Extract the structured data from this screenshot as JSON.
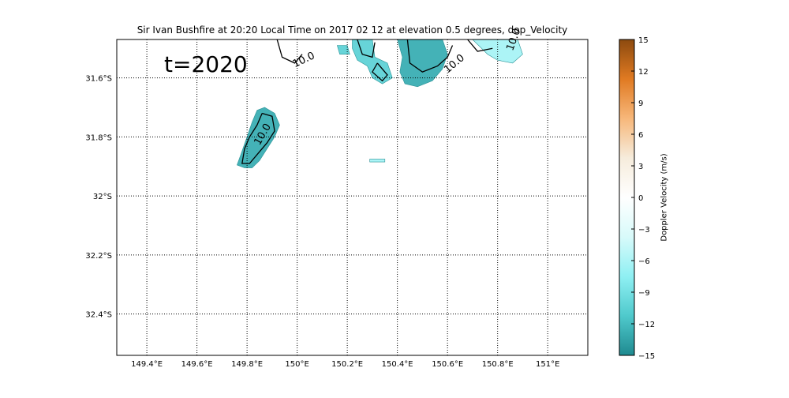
{
  "title": "Sir Ivan Bushfire at 20:20 Local Time on 2017 02 12 at elevation 0.5 degrees, dop_Velocity",
  "annotation": "t=2020",
  "contour_label": "10.0",
  "map": {
    "lon_range": [
      149.28,
      151.16
    ],
    "lat_range": [
      -32.54,
      -31.47
    ],
    "lon_ticks": [
      {
        "value": 149.4,
        "label": "149.4°E"
      },
      {
        "value": 149.6,
        "label": "149.6°E"
      },
      {
        "value": 149.8,
        "label": "149.8°E"
      },
      {
        "value": 150.0,
        "label": "150°E"
      },
      {
        "value": 150.2,
        "label": "150.2°E"
      },
      {
        "value": 150.4,
        "label": "150.4°E"
      },
      {
        "value": 150.6,
        "label": "150.6°E"
      },
      {
        "value": 150.8,
        "label": "150.8°E"
      },
      {
        "value": 151.0,
        "label": "151°E"
      }
    ],
    "lat_ticks": [
      {
        "value": -31.6,
        "label": "31.6°S"
      },
      {
        "value": -31.8,
        "label": "31.8°S"
      },
      {
        "value": -32.0,
        "label": "32°S"
      },
      {
        "value": -32.2,
        "label": "32.2°S"
      },
      {
        "value": -32.4,
        "label": "32.4°S"
      }
    ],
    "grid": "dotted",
    "echo_colors": {
      "strong": "#3aaeb4",
      "medium": "#5fd2d6",
      "light": "#a8f4f6",
      "dark": "#1f8c90"
    },
    "echoes": [
      {
        "name": "fire-plume-echo",
        "color": "strong",
        "poly": [
          [
            149.84,
            -31.71
          ],
          [
            149.87,
            -31.7
          ],
          [
            149.91,
            -31.72
          ],
          [
            149.93,
            -31.76
          ],
          [
            149.91,
            -31.8
          ],
          [
            149.88,
            -31.84
          ],
          [
            149.85,
            -31.88
          ],
          [
            149.82,
            -31.905
          ],
          [
            149.79,
            -31.905
          ],
          [
            149.76,
            -31.895
          ],
          [
            149.775,
            -31.86
          ],
          [
            149.8,
            -31.8
          ],
          [
            149.82,
            -31.75
          ]
        ]
      },
      {
        "name": "north-echo-1",
        "color": "medium",
        "poly": [
          [
            150.22,
            -31.47
          ],
          [
            150.3,
            -31.47
          ],
          [
            150.31,
            -31.53
          ],
          [
            150.36,
            -31.55
          ],
          [
            150.38,
            -31.6
          ],
          [
            150.34,
            -31.62
          ],
          [
            150.3,
            -31.6
          ],
          [
            150.28,
            -31.56
          ],
          [
            150.24,
            -31.54
          ],
          [
            150.22,
            -31.5
          ]
        ]
      },
      {
        "name": "north-echo-2",
        "color": "strong",
        "poly": [
          [
            150.4,
            -31.47
          ],
          [
            150.58,
            -31.47
          ],
          [
            150.6,
            -31.52
          ],
          [
            150.58,
            -31.57
          ],
          [
            150.54,
            -31.61
          ],
          [
            150.48,
            -31.63
          ],
          [
            150.43,
            -31.62
          ],
          [
            150.41,
            -31.58
          ],
          [
            150.42,
            -31.53
          ]
        ]
      },
      {
        "name": "north-echo-3",
        "color": "light",
        "poly": [
          [
            150.7,
            -31.47
          ],
          [
            150.88,
            -31.47
          ],
          [
            150.9,
            -31.52
          ],
          [
            150.86,
            -31.55
          ],
          [
            150.8,
            -31.54
          ],
          [
            150.76,
            -31.52
          ]
        ]
      },
      {
        "name": "north-echo-4",
        "color": "medium",
        "poly": [
          [
            150.16,
            -31.49
          ],
          [
            150.2,
            -31.49
          ],
          [
            150.21,
            -31.52
          ],
          [
            150.17,
            -31.52
          ]
        ]
      },
      {
        "name": "isolated-echo",
        "color": "light",
        "poly": [
          [
            150.29,
            -31.875
          ],
          [
            150.35,
            -31.875
          ],
          [
            150.35,
            -31.885
          ],
          [
            150.29,
            -31.885
          ]
        ]
      }
    ],
    "contours": [
      {
        "name": "contour-fire-plume",
        "pts": [
          [
            149.86,
            -31.72
          ],
          [
            149.9,
            -31.73
          ],
          [
            149.91,
            -31.78
          ],
          [
            149.88,
            -31.82
          ],
          [
            149.84,
            -31.86
          ],
          [
            149.81,
            -31.89
          ],
          [
            149.78,
            -31.89
          ],
          [
            149.79,
            -31.84
          ],
          [
            149.81,
            -31.8
          ],
          [
            149.84,
            -31.76
          ],
          [
            149.86,
            -31.72
          ]
        ]
      },
      {
        "name": "contour-north-1",
        "pts": [
          [
            149.92,
            -31.47
          ],
          [
            149.94,
            -31.53
          ],
          [
            149.99,
            -31.55
          ],
          [
            150.02,
            -31.52
          ]
        ]
      },
      {
        "name": "contour-north-2",
        "pts": [
          [
            150.24,
            -31.47
          ],
          [
            150.26,
            -31.52
          ],
          [
            150.3,
            -31.53
          ],
          [
            150.31,
            -31.48
          ]
        ]
      },
      {
        "name": "contour-north-3",
        "pts": [
          [
            150.32,
            -31.55
          ],
          [
            150.36,
            -31.59
          ],
          [
            150.34,
            -31.61
          ],
          [
            150.3,
            -31.58
          ],
          [
            150.32,
            -31.55
          ]
        ]
      },
      {
        "name": "contour-north-4",
        "pts": [
          [
            150.44,
            -31.47
          ],
          [
            150.45,
            -31.55
          ],
          [
            150.5,
            -31.58
          ],
          [
            150.56,
            -31.56
          ],
          [
            150.6,
            -31.53
          ],
          [
            150.62,
            -31.49
          ]
        ]
      },
      {
        "name": "contour-north-5",
        "pts": [
          [
            150.68,
            -31.47
          ],
          [
            150.72,
            -31.51
          ],
          [
            150.78,
            -31.5
          ]
        ]
      }
    ]
  },
  "colorbar": {
    "label": "Doppler Velocity (m/s)",
    "range": [
      -15,
      15
    ],
    "ticks": [
      {
        "value": 15,
        "label": "15"
      },
      {
        "value": 12,
        "label": "12"
      },
      {
        "value": 9,
        "label": "9"
      },
      {
        "value": 6,
        "label": "6"
      },
      {
        "value": 3,
        "label": "3"
      },
      {
        "value": 0,
        "label": "0"
      },
      {
        "value": -3,
        "label": "−3"
      },
      {
        "value": -6,
        "label": "−6"
      },
      {
        "value": -9,
        "label": "−9"
      },
      {
        "value": -12,
        "label": "−12"
      },
      {
        "value": -15,
        "label": "−15"
      }
    ],
    "colors": [
      "#8c4a0f",
      "#e07a22",
      "#f7b77a",
      "#f6ecdc",
      "#ffffff",
      "#d8fafa",
      "#8ff0f3",
      "#4fc9cc",
      "#1f8a90"
    ]
  }
}
